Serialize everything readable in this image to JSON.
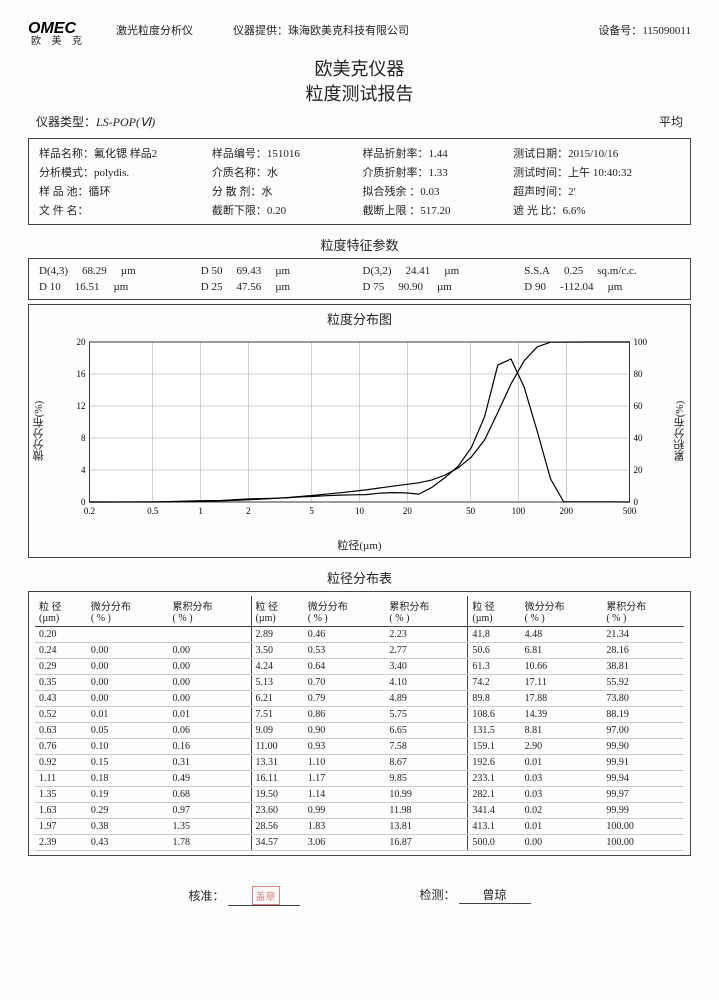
{
  "header": {
    "brand_en": "OMEC",
    "brand_cn": "欧 美 克",
    "product": "激光粒度分析仪",
    "provider_label": "仪器提供：",
    "provider": "珠海欧美克科技有限公司",
    "device_no_label": "设备号：",
    "device_no": "115090011"
  },
  "title_line1": "欧美克仪器",
  "title_line2": "粒度测试报告",
  "meta": {
    "instr_label": "仪器类型：",
    "instr_model": "LS-POP(Ⅵ)",
    "avg_label": "平均"
  },
  "info": [
    [
      "样品名称：氟化锶 样品2",
      "样品编号：151016",
      "样品折射率：1.44",
      "测试日期：2015/10/16"
    ],
    [
      "分析模式：polydis.",
      "介质名称：水",
      "介质折射率：1.33",
      "测试时间：上午 10:40:32"
    ],
    [
      "样 品 池：循环",
      "分 散 剂：水",
      "拟合残余 ：0.03",
      "超声时间：2'"
    ],
    [
      "文 件 名：",
      "截断下限：0.20",
      "截断上限 ：517.20",
      "遮 光 比：6.6%"
    ]
  ],
  "char_title": "粒度特征参数",
  "char": [
    [
      {
        "k": "D(4,3)",
        "v": "68.29",
        "u": "µm"
      },
      {
        "k": "D 50",
        "v": "69.43",
        "u": "µm"
      },
      {
        "k": "D(3,2)",
        "v": "24.41",
        "u": "µm"
      },
      {
        "k": "S.S.A",
        "v": "0.25",
        "u": "sq.m/c.c."
      }
    ],
    [
      {
        "k": "D 10",
        "v": "16.51",
        "u": "µm"
      },
      {
        "k": "D 25",
        "v": "47.56",
        "u": "µm"
      },
      {
        "k": "D 75",
        "v": "90.90",
        "u": "µm"
      },
      {
        "k": "D 90",
        "v": "-112.04",
        "u": "µm"
      }
    ]
  ],
  "chart": {
    "title": "粒度分布图",
    "ylab_left": "微分分布(%)",
    "ylab_right": "累积分布(%)",
    "xlab": "粒径(µm)",
    "x_ticks": [
      0.2,
      0.5,
      1,
      2,
      5,
      10,
      20,
      50,
      100,
      200,
      500
    ],
    "y_left_ticks": [
      0,
      4,
      8,
      12,
      16,
      20
    ],
    "y_right_ticks": [
      0,
      20,
      40,
      60,
      80,
      100
    ],
    "plot_bg": "#ffffff",
    "grid_color": "#888888",
    "line_color": "#000000",
    "diff_series": [
      [
        0.2,
        0
      ],
      [
        0.52,
        0.01
      ],
      [
        0.63,
        0.05
      ],
      [
        0.76,
        0.1
      ],
      [
        0.92,
        0.15
      ],
      [
        1.11,
        0.18
      ],
      [
        1.35,
        0.19
      ],
      [
        1.63,
        0.29
      ],
      [
        1.97,
        0.38
      ],
      [
        2.39,
        0.43
      ],
      [
        2.89,
        0.46
      ],
      [
        3.5,
        0.53
      ],
      [
        4.24,
        0.64
      ],
      [
        5.13,
        0.7
      ],
      [
        6.21,
        0.79
      ],
      [
        7.51,
        0.86
      ],
      [
        9.09,
        0.9
      ],
      [
        11.0,
        0.93
      ],
      [
        13.31,
        1.1
      ],
      [
        16.11,
        1.17
      ],
      [
        19.5,
        1.14
      ],
      [
        23.6,
        0.99
      ],
      [
        28.56,
        1.83
      ],
      [
        34.57,
        3.06
      ],
      [
        41.8,
        4.48
      ],
      [
        50.6,
        6.81
      ],
      [
        61.3,
        10.66
      ],
      [
        74.2,
        17.11
      ],
      [
        89.8,
        17.88
      ],
      [
        108.6,
        14.39
      ],
      [
        131.5,
        8.81
      ],
      [
        159.1,
        2.9
      ],
      [
        192.6,
        0.01
      ],
      [
        233.1,
        0.03
      ],
      [
        282.1,
        0.03
      ],
      [
        341.4,
        0.02
      ],
      [
        413.1,
        0.01
      ],
      [
        500,
        0.0
      ]
    ],
    "cum_series": [
      [
        0.2,
        0
      ],
      [
        0.52,
        0.01
      ],
      [
        0.92,
        0.31
      ],
      [
        1.63,
        0.97
      ],
      [
        2.39,
        1.78
      ],
      [
        3.5,
        2.77
      ],
      [
        5.13,
        4.1
      ],
      [
        7.51,
        5.75
      ],
      [
        11.0,
        7.58
      ],
      [
        16.11,
        9.85
      ],
      [
        23.6,
        11.98
      ],
      [
        28.56,
        13.81
      ],
      [
        34.57,
        16.87
      ],
      [
        41.8,
        21.34
      ],
      [
        50.6,
        28.16
      ],
      [
        61.3,
        38.81
      ],
      [
        74.2,
        55.92
      ],
      [
        89.8,
        73.8
      ],
      [
        108.6,
        88.19
      ],
      [
        131.5,
        97.0
      ],
      [
        159.1,
        99.9
      ],
      [
        192.6,
        99.91
      ],
      [
        282.1,
        99.97
      ],
      [
        413.1,
        100.0
      ],
      [
        500,
        100.0
      ]
    ]
  },
  "dist_title": "粒径分布表",
  "dist_headers": [
    "粒 径\n(µm)",
    "微分分布\n( % )",
    "累积分布\n( % )"
  ],
  "dist_rows": [
    [
      "0.20",
      "",
      "",
      "2.89",
      "0.46",
      "2.23",
      "41.8",
      "4.48",
      "21.34"
    ],
    [
      "0.24",
      "0.00",
      "0.00",
      "3.50",
      "0.53",
      "2.77",
      "50.6",
      "6.81",
      "28.16"
    ],
    [
      "0.29",
      "0.00",
      "0.00",
      "4.24",
      "0.64",
      "3.40",
      "61.3",
      "10.66",
      "38.81"
    ],
    [
      "0.35",
      "0.00",
      "0.00",
      "5.13",
      "0.70",
      "4.10",
      "74.2",
      "17.11",
      "55.92"
    ],
    [
      "0.43",
      "0.00",
      "0.00",
      "6.21",
      "0.79",
      "4.89",
      "89.8",
      "17.88",
      "73.80"
    ],
    [
      "0.52",
      "0.01",
      "0.01",
      "7.51",
      "0.86",
      "5.75",
      "108.6",
      "14.39",
      "88.19"
    ],
    [
      "0.63",
      "0.05",
      "0.06",
      "9.09",
      "0.90",
      "6.65",
      "131.5",
      "8.81",
      "97.00"
    ],
    [
      "0.76",
      "0.10",
      "0.16",
      "11.00",
      "0.93",
      "7.58",
      "159.1",
      "2.90",
      "99.90"
    ],
    [
      "0.92",
      "0.15",
      "0.31",
      "13.31",
      "1.10",
      "8.67",
      "192.6",
      "0.01",
      "99.91"
    ],
    [
      "1.11",
      "0.18",
      "0.49",
      "16.11",
      "1.17",
      "9.85",
      "233.1",
      "0.03",
      "99.94"
    ],
    [
      "1.35",
      "0.19",
      "0.68",
      "19.50",
      "1.14",
      "10.99",
      "282.1",
      "0.03",
      "99.97"
    ],
    [
      "1.63",
      "0.29",
      "0.97",
      "23.60",
      "0.99",
      "11.98",
      "341.4",
      "0.02",
      "99.99"
    ],
    [
      "1.97",
      "0.38",
      "1.35",
      "28.56",
      "1.83",
      "13.81",
      "413.1",
      "0.01",
      "100.00"
    ],
    [
      "2.39",
      "0.43",
      "1.78",
      "34.57",
      "3.06",
      "16.87",
      "500.0",
      "0.00",
      "100.00"
    ]
  ],
  "footer": {
    "approve_label": "核准：",
    "stamp": "盖章",
    "inspect_label": "检测：",
    "inspector": "曾琼"
  }
}
